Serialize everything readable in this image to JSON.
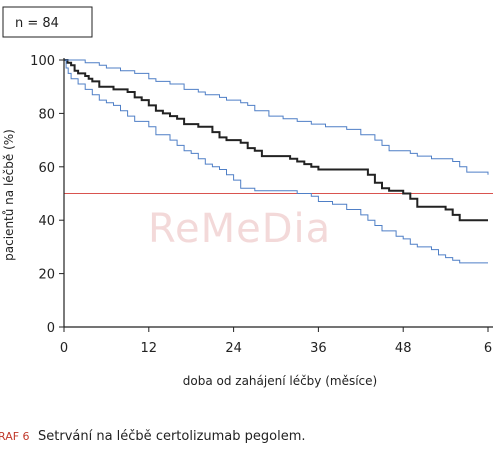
{
  "chart_data": {
    "type": "line",
    "title": "",
    "annotation": "n = 84",
    "xlabel": "doba od zahájení léčby (měsíce)",
    "ylabel": "pacientů na léčbě (%)",
    "xlim": [
      0,
      60
    ],
    "ylim": [
      0,
      100
    ],
    "x_ticks": [
      "0",
      "12",
      "24",
      "36",
      "48",
      "6"
    ],
    "y_ticks": [
      "0",
      "20",
      "40",
      "60",
      "80",
      "100"
    ],
    "reference_line": {
      "y": 50,
      "color": "#d9534f"
    },
    "grid": false,
    "series": [
      {
        "role": "estimate",
        "color": "#222222",
        "points": [
          [
            0,
            100
          ],
          [
            0.5,
            99
          ],
          [
            1,
            98
          ],
          [
            1.5,
            96
          ],
          [
            2,
            95
          ],
          [
            3,
            94
          ],
          [
            3.5,
            93
          ],
          [
            4,
            92
          ],
          [
            5,
            90
          ],
          [
            7,
            89
          ],
          [
            9,
            88
          ],
          [
            10,
            86
          ],
          [
            11,
            85
          ],
          [
            12,
            83
          ],
          [
            13,
            81
          ],
          [
            14,
            80
          ],
          [
            15,
            79
          ],
          [
            16,
            78
          ],
          [
            17,
            76
          ],
          [
            19,
            75
          ],
          [
            21,
            73
          ],
          [
            22,
            71
          ],
          [
            23,
            70
          ],
          [
            25,
            69
          ],
          [
            26,
            67
          ],
          [
            27,
            66
          ],
          [
            28,
            64
          ],
          [
            31,
            64
          ],
          [
            32,
            63
          ],
          [
            33,
            62
          ],
          [
            34,
            61
          ],
          [
            35,
            60
          ],
          [
            36,
            59
          ],
          [
            42,
            59
          ],
          [
            43,
            57
          ],
          [
            44,
            54
          ],
          [
            45,
            52
          ],
          [
            46,
            51
          ],
          [
            48,
            50
          ],
          [
            49,
            48
          ],
          [
            50,
            45
          ],
          [
            54,
            44
          ],
          [
            55,
            42
          ],
          [
            56,
            40
          ],
          [
            60,
            40
          ]
        ]
      },
      {
        "role": "upper-ci",
        "color": "#4f7fc6",
        "points": [
          [
            0,
            100
          ],
          [
            3,
            99
          ],
          [
            5,
            98
          ],
          [
            6,
            97
          ],
          [
            8,
            96
          ],
          [
            10,
            95
          ],
          [
            12,
            93
          ],
          [
            13,
            92
          ],
          [
            15,
            91
          ],
          [
            17,
            89
          ],
          [
            19,
            88
          ],
          [
            20,
            87
          ],
          [
            22,
            86
          ],
          [
            23,
            85
          ],
          [
            25,
            84
          ],
          [
            26,
            83
          ],
          [
            27,
            81
          ],
          [
            29,
            79
          ],
          [
            31,
            78
          ],
          [
            33,
            77
          ],
          [
            35,
            76
          ],
          [
            37,
            75
          ],
          [
            40,
            74
          ],
          [
            42,
            72
          ],
          [
            44,
            70
          ],
          [
            45,
            68
          ],
          [
            46,
            66
          ],
          [
            49,
            65
          ],
          [
            50,
            64
          ],
          [
            52,
            63
          ],
          [
            55,
            62
          ],
          [
            56,
            60
          ],
          [
            57,
            58
          ],
          [
            60,
            57
          ]
        ]
      },
      {
        "role": "lower-ci",
        "color": "#4f7fc6",
        "points": [
          [
            0,
            100
          ],
          [
            0.3,
            97
          ],
          [
            0.6,
            95
          ],
          [
            1,
            93
          ],
          [
            2,
            91
          ],
          [
            3,
            89
          ],
          [
            4,
            87
          ],
          [
            5,
            85
          ],
          [
            6,
            84
          ],
          [
            7,
            83
          ],
          [
            8,
            81
          ],
          [
            9,
            79
          ],
          [
            10,
            77
          ],
          [
            12,
            75
          ],
          [
            13,
            72
          ],
          [
            15,
            70
          ],
          [
            16,
            68
          ],
          [
            17,
            66
          ],
          [
            18,
            65
          ],
          [
            19,
            63
          ],
          [
            20,
            61
          ],
          [
            21,
            60
          ],
          [
            22,
            59
          ],
          [
            23,
            57
          ],
          [
            24,
            55
          ],
          [
            25,
            52
          ],
          [
            27,
            51
          ],
          [
            33,
            50
          ],
          [
            35,
            49
          ],
          [
            36,
            47
          ],
          [
            38,
            46
          ],
          [
            40,
            44
          ],
          [
            42,
            42
          ],
          [
            43,
            40
          ],
          [
            44,
            38
          ],
          [
            45,
            36
          ],
          [
            47,
            34
          ],
          [
            48,
            33
          ],
          [
            49,
            31
          ],
          [
            50,
            30
          ],
          [
            52,
            29
          ],
          [
            53,
            27
          ],
          [
            54,
            26
          ],
          [
            55,
            25
          ],
          [
            56,
            24
          ],
          [
            60,
            24
          ]
        ]
      }
    ]
  },
  "caption": {
    "label": "RAF 6",
    "text": "Setrvání na léčbě certolizumab pegolem."
  },
  "watermark": "ReMeDia"
}
